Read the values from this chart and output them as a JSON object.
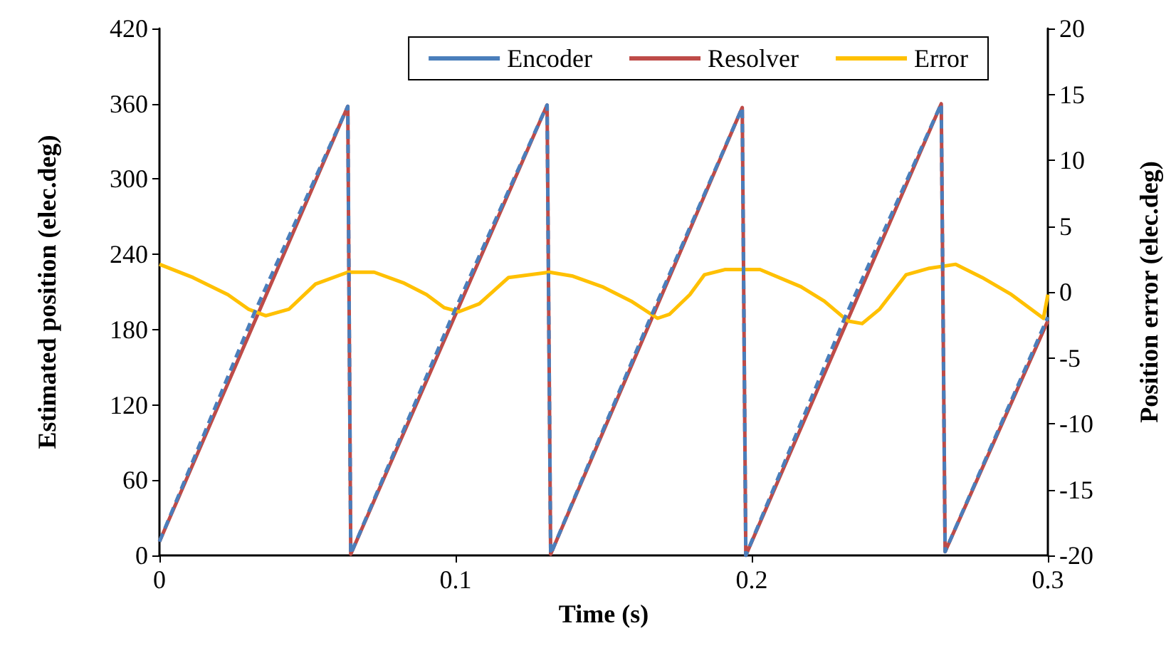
{
  "chart_data": {
    "type": "line",
    "xlabel": "Time (s)",
    "ylabel": "Estimated position (elec.deg)",
    "y2label": "Position error (elec.deg)",
    "xlim": [
      0,
      0.3
    ],
    "xticks": [
      0,
      0.1,
      0.2,
      0.3
    ],
    "ylim": [
      0,
      420
    ],
    "yticks": [
      0,
      60,
      120,
      180,
      240,
      300,
      360,
      420
    ],
    "y2lim": [
      -20,
      20
    ],
    "y2ticks": [
      -20,
      -15,
      -10,
      -5,
      0,
      5,
      10,
      15,
      20
    ],
    "legend": "top right",
    "grid": false,
    "marker": "none",
    "series": [
      {
        "name": "Encoder",
        "color": "#4a7ebb",
        "line_style": "dashed",
        "x": [
          0,
          0.032,
          0.0636,
          0.0646,
          0.098,
          0.1309,
          0.1321,
          0.165,
          0.1968,
          0.198,
          0.231,
          0.264,
          0.2653,
          0.3
        ],
        "values": [
          11,
          193,
          358,
          1,
          186,
          359,
          1,
          185,
          357,
          0,
          187,
          360,
          3,
          190
        ]
      },
      {
        "name": "Resolver",
        "color": "#be4b48",
        "line_style": "solid",
        "x": [
          0,
          0.0636,
          0.0646,
          0.1309,
          0.1321,
          0.1968,
          0.198,
          0.264,
          0.2653,
          0.3
        ],
        "values": [
          11,
          358,
          1,
          359,
          1,
          357,
          0,
          360,
          3,
          187
        ]
      },
      {
        "name": "Error",
        "color": "#ffc000",
        "line_style": "solid",
        "axis": "y2",
        "x": [
          0,
          0.0113,
          0.0231,
          0.03,
          0.0359,
          0.0438,
          0.0527,
          0.0636,
          0.0725,
          0.0823,
          0.0902,
          0.0962,
          0.1011,
          0.108,
          0.1179,
          0.1317,
          0.1396,
          0.1495,
          0.1593,
          0.1682,
          0.1722,
          0.1791,
          0.184,
          0.1909,
          0.2028,
          0.2166,
          0.2245,
          0.2324,
          0.2373,
          0.2432,
          0.2521,
          0.26,
          0.2689,
          0.2778,
          0.2877,
          0.2985,
          0.3
        ],
        "values": [
          2.1,
          1.1,
          -0.2,
          -1.3,
          -1.8,
          -1.3,
          0.6,
          1.5,
          1.5,
          0.7,
          -0.2,
          -1.2,
          -1.5,
          -0.9,
          1.1,
          1.5,
          1.2,
          0.4,
          -0.7,
          -2,
          -1.7,
          -0.2,
          1.3,
          1.7,
          1.7,
          0.4,
          -0.7,
          -2.2,
          -2.4,
          -1.3,
          1.3,
          1.8,
          2.1,
          1.1,
          -0.2,
          -2,
          -0.2
        ]
      }
    ]
  }
}
